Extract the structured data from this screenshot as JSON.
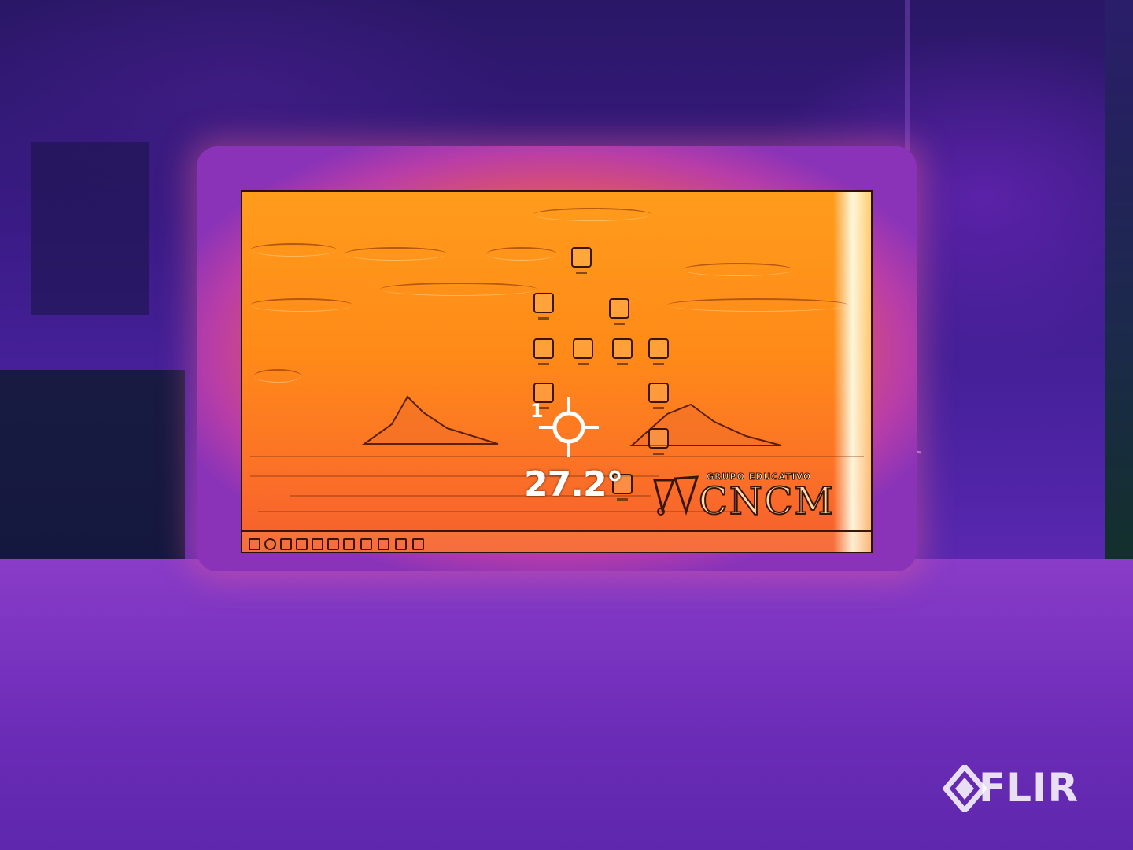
{
  "overlay": {
    "spot_index": "1",
    "temperature": "27.2°"
  },
  "brand": {
    "name": "FLIR",
    "icon": "flir-diamond-logo"
  },
  "screen_logo": {
    "subtitle": "GRUPO EDUCATIVO",
    "name": "CNCM"
  },
  "palette": {
    "cold": "#2a1766",
    "mid": "#8a3cc8",
    "warm": "#f25d4a",
    "hot": "#ff9c1c",
    "hottest": "#fffce6"
  }
}
